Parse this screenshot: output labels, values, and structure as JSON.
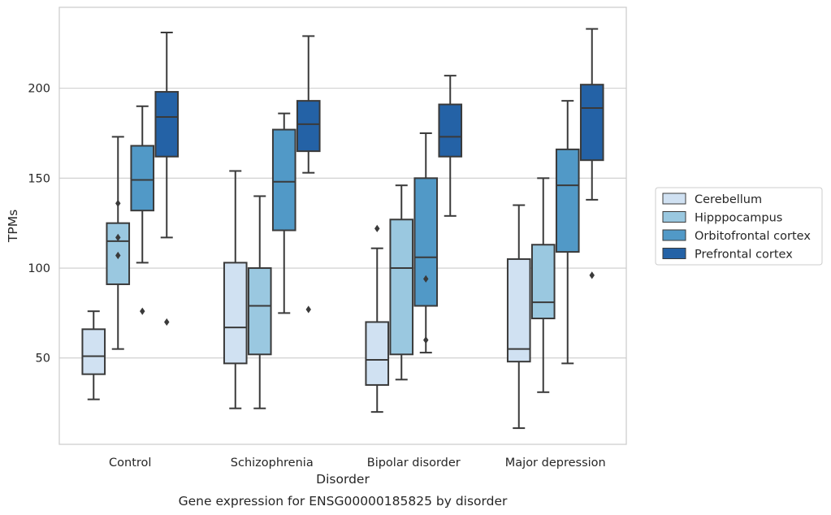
{
  "chart_data": {
    "type": "box",
    "xlabel": "Disorder",
    "ylabel": "TPMs",
    "caption": "Gene expression for ENSG00000185825 by disorder",
    "categories": [
      "Control",
      "Schizophrenia",
      "Bipolar disorder",
      "Major depression"
    ],
    "yticks": [
      50,
      100,
      150,
      200
    ],
    "ylim": [
      2,
      245
    ],
    "grid": "horizontal",
    "legend_position": "right",
    "series": [
      {
        "name": "Cerebellum",
        "color": "#d0e1f2",
        "boxes": [
          {
            "whislo": 27,
            "q1": 41,
            "med": 51,
            "q3": 66,
            "whishi": 76,
            "fliers": []
          },
          {
            "whislo": 22,
            "q1": 47,
            "med": 67,
            "q3": 103,
            "whishi": 154,
            "fliers": []
          },
          {
            "whislo": 20,
            "q1": 35,
            "med": 49,
            "q3": 70,
            "whishi": 111,
            "fliers": [
              122
            ]
          },
          {
            "whislo": 11,
            "q1": 48,
            "med": 55,
            "q3": 105,
            "whishi": 135,
            "fliers": []
          }
        ]
      },
      {
        "name": "Hipppocampus",
        "color": "#9ac8e0",
        "boxes": [
          {
            "whislo": 55,
            "q1": 91,
            "med": 115,
            "q3": 125,
            "whishi": 173,
            "fliers": [
              107,
              117,
              136
            ]
          },
          {
            "whislo": 22,
            "q1": 52,
            "med": 79,
            "q3": 100,
            "whishi": 140,
            "fliers": []
          },
          {
            "whislo": 38,
            "q1": 52,
            "med": 100,
            "q3": 127,
            "whishi": 146,
            "fliers": []
          },
          {
            "whislo": 31,
            "q1": 72,
            "med": 81,
            "q3": 113,
            "whishi": 150,
            "fliers": []
          }
        ]
      },
      {
        "name": "Orbitofrontal cortex",
        "color": "#5199c7",
        "boxes": [
          {
            "whislo": 103,
            "q1": 132,
            "med": 149,
            "q3": 168,
            "whishi": 190,
            "fliers": [
              76
            ]
          },
          {
            "whislo": 75,
            "q1": 121,
            "med": 148,
            "q3": 177,
            "whishi": 186,
            "fliers": []
          },
          {
            "whislo": 53,
            "q1": 79,
            "med": 106,
            "q3": 150,
            "whishi": 175,
            "fliers": [
              60,
              94
            ]
          },
          {
            "whislo": 47,
            "q1": 109,
            "med": 146,
            "q3": 166,
            "whishi": 193,
            "fliers": []
          }
        ]
      },
      {
        "name": "Prefrontal cortex",
        "color": "#2462a6",
        "boxes": [
          {
            "whislo": 117,
            "q1": 162,
            "med": 184,
            "q3": 198,
            "whishi": 231,
            "fliers": [
              70
            ]
          },
          {
            "whislo": 153,
            "q1": 165,
            "med": 180,
            "q3": 193,
            "whishi": 229,
            "fliers": [
              77
            ]
          },
          {
            "whislo": 129,
            "q1": 162,
            "med": 173,
            "q3": 191,
            "whishi": 207,
            "fliers": []
          },
          {
            "whislo": 138,
            "q1": 160,
            "med": 189,
            "q3": 202,
            "whishi": 233,
            "fliers": [
              96
            ]
          }
        ]
      }
    ]
  }
}
